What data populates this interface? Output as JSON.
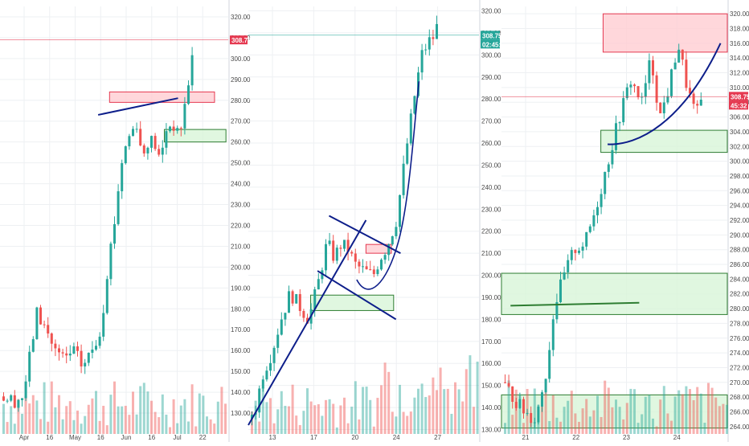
{
  "colors": {
    "up": "#26a69a",
    "down": "#ef5350",
    "grid": "#eef0f3",
    "axis": "#d1d4dc",
    "drawing": "#0d1e8a",
    "price_tag": "#e53950",
    "timer_tag": "#26a69a",
    "zone_red": "#ffcdd2",
    "zone_green": "#d8f5d8",
    "trend_green": "#2e7d32"
  },
  "chart_data": [
    {
      "type": "candlestick",
      "panel": "left",
      "ylim": [
        120,
        325
      ],
      "yticks": [
        "320.00",
        "310.00",
        "300.00",
        "290.00",
        "280.00",
        "270.00",
        "260.00",
        "250.00",
        "240.00",
        "230.00",
        "220.00",
        "210.00",
        "200.00",
        "190.00",
        "180.00",
        "170.00",
        "160.00",
        "150.00",
        "140.00",
        "130.00"
      ],
      "xticks": [
        "Apr",
        "16",
        "May",
        "16",
        "Jun",
        "16",
        "Jul",
        "22"
      ],
      "last_price_label": "308.75",
      "last_price": 308.75,
      "path": [
        [
          0,
          138
        ],
        [
          0.06,
          136
        ],
        [
          0.1,
          138
        ],
        [
          0.13,
          158
        ],
        [
          0.16,
          178
        ],
        [
          0.2,
          170
        ],
        [
          0.24,
          160
        ],
        [
          0.28,
          155
        ],
        [
          0.32,
          160
        ],
        [
          0.36,
          152
        ],
        [
          0.4,
          160
        ],
        [
          0.44,
          170
        ],
        [
          0.47,
          200
        ],
        [
          0.5,
          222
        ],
        [
          0.53,
          250
        ],
        [
          0.56,
          262
        ],
        [
          0.6,
          270
        ],
        [
          0.62,
          252
        ],
        [
          0.65,
          262
        ],
        [
          0.68,
          258
        ],
        [
          0.7,
          250
        ],
        [
          0.73,
          268
        ],
        [
          0.76,
          268
        ],
        [
          0.78,
          262
        ],
        [
          0.8,
          272
        ],
        [
          0.84,
          300
        ],
        [
          0.86,
          316
        ]
      ],
      "zones": [
        {
          "kind": "resistance",
          "x0": 0.48,
          "x1": 0.94,
          "y0": 279,
          "y1": 284
        },
        {
          "kind": "support",
          "x0": 0.72,
          "x1": 0.99,
          "y0": 260,
          "y1": 266
        }
      ],
      "lines": [
        {
          "kind": "trendline",
          "points": [
            [
              0.43,
              273
            ],
            [
              0.78,
              281
            ]
          ]
        },
        {
          "kind": "price_level",
          "points": [
            [
              0,
              309
            ],
            [
              1,
              309
            ]
          ]
        }
      ]
    },
    {
      "type": "candlestick",
      "panel": "middle",
      "ylim": [
        128,
        322
      ],
      "yticks": [
        "320.00",
        "310.00",
        "300.00",
        "290.00",
        "280.00",
        "270.00",
        "260.00",
        "250.00",
        "240.00",
        "230.00",
        "220.00",
        "210.00",
        "200.00",
        "190.00",
        "180.00",
        "170.00",
        "160.00",
        "150.00",
        "140.00",
        "130.00"
      ],
      "xticks": [
        "13",
        "17",
        "20",
        "24",
        "27"
      ],
      "last_price_label": "308.75",
      "timer_label": "02:45:32",
      "last_price": 308.75,
      "path": [
        [
          0,
          135
        ],
        [
          0.03,
          140
        ],
        [
          0.06,
          155
        ],
        [
          0.1,
          165
        ],
        [
          0.14,
          180
        ],
        [
          0.18,
          192
        ],
        [
          0.22,
          186
        ],
        [
          0.26,
          180
        ],
        [
          0.3,
          196
        ],
        [
          0.34,
          215
        ],
        [
          0.37,
          208
        ],
        [
          0.4,
          214
        ],
        [
          0.43,
          212
        ],
        [
          0.46,
          205
        ],
        [
          0.5,
          202
        ],
        [
          0.54,
          200
        ],
        [
          0.57,
          208
        ],
        [
          0.6,
          213
        ],
        [
          0.64,
          225
        ],
        [
          0.68,
          255
        ],
        [
          0.72,
          282
        ],
        [
          0.75,
          300
        ],
        [
          0.78,
          306
        ],
        [
          0.8,
          308
        ],
        [
          0.82,
          314
        ],
        [
          0.84,
          308
        ]
      ],
      "zones": [
        {
          "kind": "resistance",
          "x0": 0.51,
          "x1": 0.62,
          "y0": 210,
          "y1": 214
        },
        {
          "kind": "support",
          "x0": 0.27,
          "x1": 0.63,
          "y0": 184,
          "y1": 191
        }
      ],
      "lines": [
        {
          "kind": "trendline",
          "points": [
            [
              0,
              132
            ],
            [
              0.51,
              225
            ]
          ]
        },
        {
          "kind": "channel",
          "points": [
            [
              0.35,
              227
            ],
            [
              0.66,
              210
            ]
          ]
        },
        {
          "kind": "channel",
          "points": [
            [
              0.3,
              202
            ],
            [
              0.64,
              180
            ]
          ]
        },
        {
          "kind": "price_level",
          "points": [
            [
              0,
              309
            ],
            [
              1,
              309
            ]
          ]
        }
      ]
    },
    {
      "type": "candlestick",
      "panel": "right",
      "ylim": [
        263,
        321
      ],
      "yticks": [
        "320.00",
        "318.00",
        "316.00",
        "314.00",
        "312.00",
        "310.00",
        "308.00",
        "306.00",
        "304.00",
        "302.00",
        "300.00",
        "298.00",
        "296.00",
        "294.00",
        "292.00",
        "290.00",
        "288.00",
        "286.00",
        "284.00",
        "282.00",
        "280.00",
        "278.00",
        "276.00",
        "274.00",
        "272.00",
        "270.00",
        "268.00",
        "266.00",
        "264.00"
      ],
      "xticks": [
        "21",
        "22",
        "23",
        "24"
      ],
      "last_price_label": "308.75",
      "timer_label": "45:32",
      "last_price": 308.75,
      "path": [
        [
          0,
          270
        ],
        [
          0.05,
          268
        ],
        [
          0.1,
          266
        ],
        [
          0.15,
          265
        ],
        [
          0.2,
          272
        ],
        [
          0.23,
          280
        ],
        [
          0.27,
          284
        ],
        [
          0.32,
          288
        ],
        [
          0.37,
          289
        ],
        [
          0.42,
          294
        ],
        [
          0.47,
          300
        ],
        [
          0.52,
          306
        ],
        [
          0.57,
          311
        ],
        [
          0.62,
          308
        ],
        [
          0.66,
          314
        ],
        [
          0.7,
          306
        ],
        [
          0.74,
          310
        ],
        [
          0.78,
          316
        ],
        [
          0.82,
          310
        ],
        [
          0.86,
          306
        ],
        [
          0.9,
          310
        ]
      ],
      "zones": [
        {
          "kind": "resistance",
          "x0": 0.45,
          "x1": 1,
          "y0": 314.8,
          "y1": 320
        },
        {
          "kind": "support",
          "x0": 0.44,
          "x1": 1,
          "y0": 301.2,
          "y1": 304.2
        },
        {
          "kind": "support",
          "x0": 0,
          "x1": 1,
          "y0": 279.2,
          "y1": 284.8
        },
        {
          "kind": "support",
          "x0": 0,
          "x1": 1,
          "y0": 263.8,
          "y1": 268.3
        }
      ],
      "lines": [
        {
          "kind": "trendline",
          "points": [
            [
              0.04,
              280.4
            ],
            [
              0.61,
              280.8
            ]
          ]
        },
        {
          "kind": "price_level",
          "points": [
            [
              0,
              308.75
            ],
            [
              1,
              308.75
            ]
          ]
        }
      ],
      "curve": [
        [
          0.47,
          302.3
        ],
        [
          0.6,
          302.1
        ],
        [
          0.8,
          305
        ],
        [
          0.97,
          316
        ]
      ]
    }
  ]
}
